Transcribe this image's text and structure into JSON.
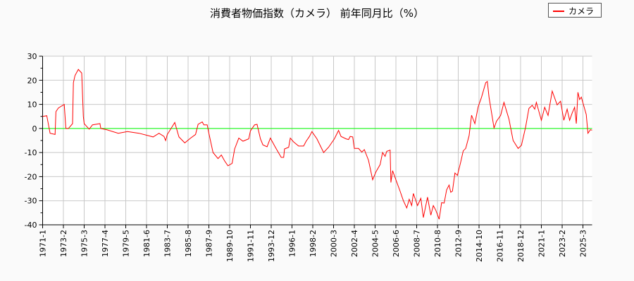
{
  "chart_data": {
    "type": "line",
    "title": "消費者物価指数（カメラ） 前年同月比（%）",
    "xlabel": "",
    "ylabel": "",
    "ylim": [
      -40,
      30
    ],
    "yticks": [
      -40,
      -30,
      -20,
      -10,
      0,
      10,
      20,
      30
    ],
    "xlim": [
      "1971-01",
      "2026-02"
    ],
    "xticks": [
      "1971-1",
      "1973-2",
      "1975-3",
      "1977-4",
      "1979-5",
      "1981-6",
      "1983-7",
      "1985-8",
      "1987-9",
      "1989-10",
      "1991-11",
      "1993-12",
      "1996-1",
      "1998-2",
      "2000-3",
      "2002-4",
      "2004-5",
      "2006-6",
      "2008-7",
      "2010-8",
      "2012-9",
      "2014-10",
      "2016-11",
      "2018-12",
      "2021-1",
      "2023-2",
      "2025-3"
    ],
    "grid": true,
    "zero_line_color": "#00ff00",
    "legend_position": "top-right",
    "series": [
      {
        "name": "カメラ",
        "color": "#ff0000",
        "points": [
          [
            "1971-01",
            5
          ],
          [
            "1971-06",
            5.3
          ],
          [
            "1971-10",
            -2
          ],
          [
            "1972-04",
            -2.5
          ],
          [
            "1972-05",
            7
          ],
          [
            "1972-08",
            8.5
          ],
          [
            "1973-03",
            10
          ],
          [
            "1973-05",
            0
          ],
          [
            "1973-08",
            0
          ],
          [
            "1974-01",
            2
          ],
          [
            "1974-02",
            19
          ],
          [
            "1974-04",
            22
          ],
          [
            "1974-08",
            24.5
          ],
          [
            "1974-12",
            23
          ],
          [
            "1975-02",
            5
          ],
          [
            "1975-03",
            2
          ],
          [
            "1975-09",
            -0.3
          ],
          [
            "1976-01",
            1.5
          ],
          [
            "1976-10",
            2
          ],
          [
            "1976-11",
            0
          ],
          [
            "1977-06",
            -0.5
          ],
          [
            "1978-08",
            -2
          ],
          [
            "1979-07",
            -1.3
          ],
          [
            "1980-09",
            -2
          ],
          [
            "1982-02",
            -3.5
          ],
          [
            "1982-09",
            -2
          ],
          [
            "1983-03",
            -3.3
          ],
          [
            "1983-05",
            -5
          ],
          [
            "1983-07",
            -2.5
          ],
          [
            "1984-04",
            2.5
          ],
          [
            "1984-09",
            -3.5
          ],
          [
            "1985-04",
            -6
          ],
          [
            "1985-11",
            -4
          ],
          [
            "1986-05",
            -2.5
          ],
          [
            "1986-08",
            1.7
          ],
          [
            "1987-01",
            2.7
          ],
          [
            "1987-03",
            1.5
          ],
          [
            "1987-07",
            1.5
          ],
          [
            "1987-09",
            -2
          ],
          [
            "1988-02",
            -10
          ],
          [
            "1988-08",
            -12.5
          ],
          [
            "1988-12",
            -11
          ],
          [
            "1989-04",
            -13.5
          ],
          [
            "1989-08",
            -15.5
          ],
          [
            "1990-01",
            -14.5
          ],
          [
            "1990-04",
            -8.5
          ],
          [
            "1990-09",
            -4
          ],
          [
            "1991-02",
            -5.3
          ],
          [
            "1991-09",
            -4.3
          ],
          [
            "1991-11",
            -1
          ],
          [
            "1992-04",
            1.5
          ],
          [
            "1992-07",
            1.7
          ],
          [
            "1992-11",
            -4.3
          ],
          [
            "1993-02",
            -6.8
          ],
          [
            "1993-07",
            -7.6
          ],
          [
            "1993-11",
            -4
          ],
          [
            "1994-05",
            -7.8
          ],
          [
            "1994-12",
            -12
          ],
          [
            "1995-03",
            -12
          ],
          [
            "1995-04",
            -8.5
          ],
          [
            "1995-09",
            -7.8
          ],
          [
            "1995-11",
            -4
          ],
          [
            "1996-03",
            -5.6
          ],
          [
            "1996-09",
            -7.3
          ],
          [
            "1997-03",
            -7.3
          ],
          [
            "1997-06",
            -5.3
          ],
          [
            "1997-10",
            -3.3
          ],
          [
            "1998-01",
            -1.3
          ],
          [
            "1998-07",
            -4.3
          ],
          [
            "1999-03",
            -10
          ],
          [
            "1999-09",
            -7.8
          ],
          [
            "2000-04",
            -4.3
          ],
          [
            "2000-09",
            -0.8
          ],
          [
            "2000-12",
            -3.3
          ],
          [
            "2001-06",
            -4.3
          ],
          [
            "2001-09",
            -4.6
          ],
          [
            "2001-11",
            -3.3
          ],
          [
            "2002-02",
            -3.5
          ],
          [
            "2002-04",
            -8.3
          ],
          [
            "2002-09",
            -8.3
          ],
          [
            "2003-01",
            -9.8
          ],
          [
            "2003-04",
            -8.8
          ],
          [
            "2003-09",
            -13.2
          ],
          [
            "2004-02",
            -21.3
          ],
          [
            "2004-06",
            -18
          ],
          [
            "2004-11",
            -15
          ],
          [
            "2005-02",
            -10
          ],
          [
            "2005-05",
            -11.6
          ],
          [
            "2005-07",
            -9.5
          ],
          [
            "2005-11",
            -9
          ],
          [
            "2005-12",
            -22.4
          ],
          [
            "2006-02",
            -17.5
          ],
          [
            "2006-06",
            -21.3
          ],
          [
            "2006-11",
            -26
          ],
          [
            "2007-03",
            -30
          ],
          [
            "2007-07",
            -33
          ],
          [
            "2007-10",
            -29.4
          ],
          [
            "2008-01",
            -32
          ],
          [
            "2008-03",
            -27
          ],
          [
            "2008-08",
            -32
          ],
          [
            "2008-12",
            -29
          ],
          [
            "2009-03",
            -37
          ],
          [
            "2009-08",
            -28.5
          ],
          [
            "2009-12",
            -36
          ],
          [
            "2010-03",
            -32
          ],
          [
            "2010-06",
            -34
          ],
          [
            "2010-10",
            -37.7
          ],
          [
            "2011-01",
            -30.8
          ],
          [
            "2011-04",
            -31
          ],
          [
            "2011-07",
            -25.5
          ],
          [
            "2011-10",
            -23.5
          ],
          [
            "2011-12",
            -26.5
          ],
          [
            "2012-02",
            -26
          ],
          [
            "2012-05",
            -18.5
          ],
          [
            "2012-08",
            -19.5
          ],
          [
            "2012-12",
            -13.8
          ],
          [
            "2013-03",
            -9.3
          ],
          [
            "2013-06",
            -8.3
          ],
          [
            "2013-10",
            -3
          ],
          [
            "2014-01",
            5.5
          ],
          [
            "2014-05",
            2
          ],
          [
            "2014-09",
            9
          ],
          [
            "2015-01",
            13
          ],
          [
            "2015-06",
            19
          ],
          [
            "2015-08",
            19.5
          ],
          [
            "2015-10",
            13
          ],
          [
            "2016-04",
            0.2
          ],
          [
            "2016-07",
            3
          ],
          [
            "2016-12",
            5.4
          ],
          [
            "2017-04",
            10.8
          ],
          [
            "2017-10",
            3.9
          ],
          [
            "2018-03",
            -5
          ],
          [
            "2018-09",
            -8.3
          ],
          [
            "2019-01",
            -7
          ],
          [
            "2019-06",
            0.5
          ],
          [
            "2019-10",
            8.3
          ],
          [
            "2020-02",
            9.6
          ],
          [
            "2020-05",
            8
          ],
          [
            "2020-07",
            10.8
          ],
          [
            "2021-01",
            3.4
          ],
          [
            "2021-05",
            8.8
          ],
          [
            "2021-09",
            5.4
          ],
          [
            "2022-02",
            15.5
          ],
          [
            "2022-08",
            9.8
          ],
          [
            "2022-12",
            11.3
          ],
          [
            "2023-04",
            3.4
          ],
          [
            "2023-08",
            8
          ],
          [
            "2023-11",
            3.4
          ],
          [
            "2024-02",
            6.4
          ],
          [
            "2024-05",
            8.8
          ],
          [
            "2024-07",
            2
          ],
          [
            "2024-09",
            15
          ],
          [
            "2024-11",
            12
          ],
          [
            "2025-01",
            13
          ],
          [
            "2025-07",
            5.8
          ],
          [
            "2025-09",
            -2
          ],
          [
            "2025-12",
            -0.5
          ],
          [
            "2026-02",
            -0.7
          ]
        ]
      }
    ]
  }
}
